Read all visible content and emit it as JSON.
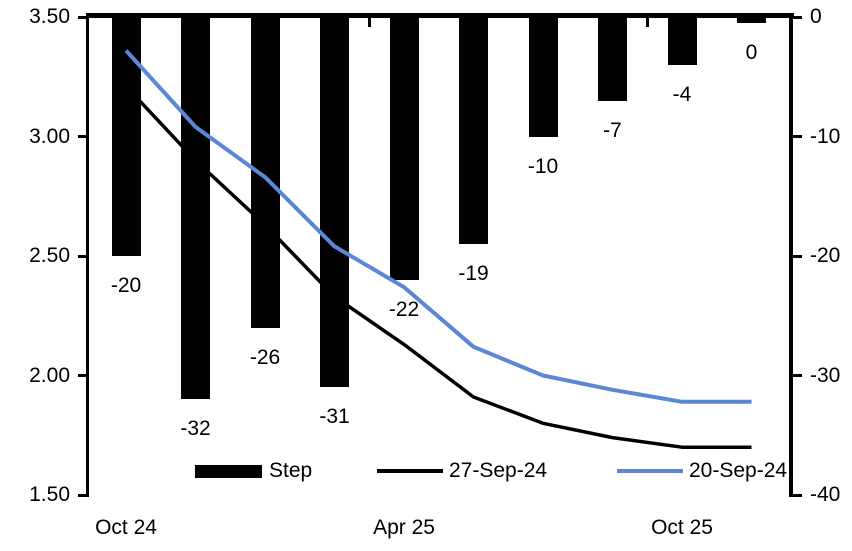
{
  "chart_data": {
    "type": "combo",
    "subtype": "bar+line, dual axis",
    "title": "",
    "n_categories": 10,
    "grid": false,
    "background": "#ffffff",
    "x_axis": {
      "labels": [
        {
          "text": "Oct 24",
          "category_index": 0
        },
        {
          "text": "Apr 25",
          "category_index": 4
        },
        {
          "text": "Oct 25",
          "category_index": 8
        }
      ]
    },
    "left_axis": {
      "min": 1.5,
      "max": 3.5,
      "tick_labels": [
        "3.50",
        "3.00",
        "2.50",
        "2.00",
        "1.50"
      ]
    },
    "right_axis": {
      "min": -40,
      "max": 0,
      "tick_labels": [
        "0",
        "-10",
        "-20",
        "-30",
        "-40"
      ]
    },
    "series": [
      {
        "name": "Step",
        "type": "bar",
        "axis": "right",
        "color": "#000000",
        "values": [
          -20,
          -32,
          -26,
          -31,
          -22,
          -19,
          -10,
          -7,
          -4,
          0
        ],
        "data_labels": [
          "-20",
          "-32",
          "-26",
          "-31",
          "-22",
          "-19",
          "-10",
          "-7",
          "-4",
          "0"
        ]
      },
      {
        "name": "27-Sep-24",
        "type": "line",
        "axis": "left",
        "color": "#000000",
        "stroke_width": 3.5,
        "values": [
          3.21,
          2.9,
          2.63,
          2.33,
          2.13,
          1.91,
          1.8,
          1.74,
          1.7,
          1.7
        ]
      },
      {
        "name": "20-Sep-24",
        "type": "line",
        "axis": "left",
        "color": "#5B87D5",
        "stroke_width": 4,
        "values": [
          3.36,
          3.04,
          2.83,
          2.54,
          2.37,
          2.12,
          2.0,
          1.94,
          1.89,
          1.89
        ]
      }
    ],
    "legend": {
      "position": "bottom"
    }
  }
}
